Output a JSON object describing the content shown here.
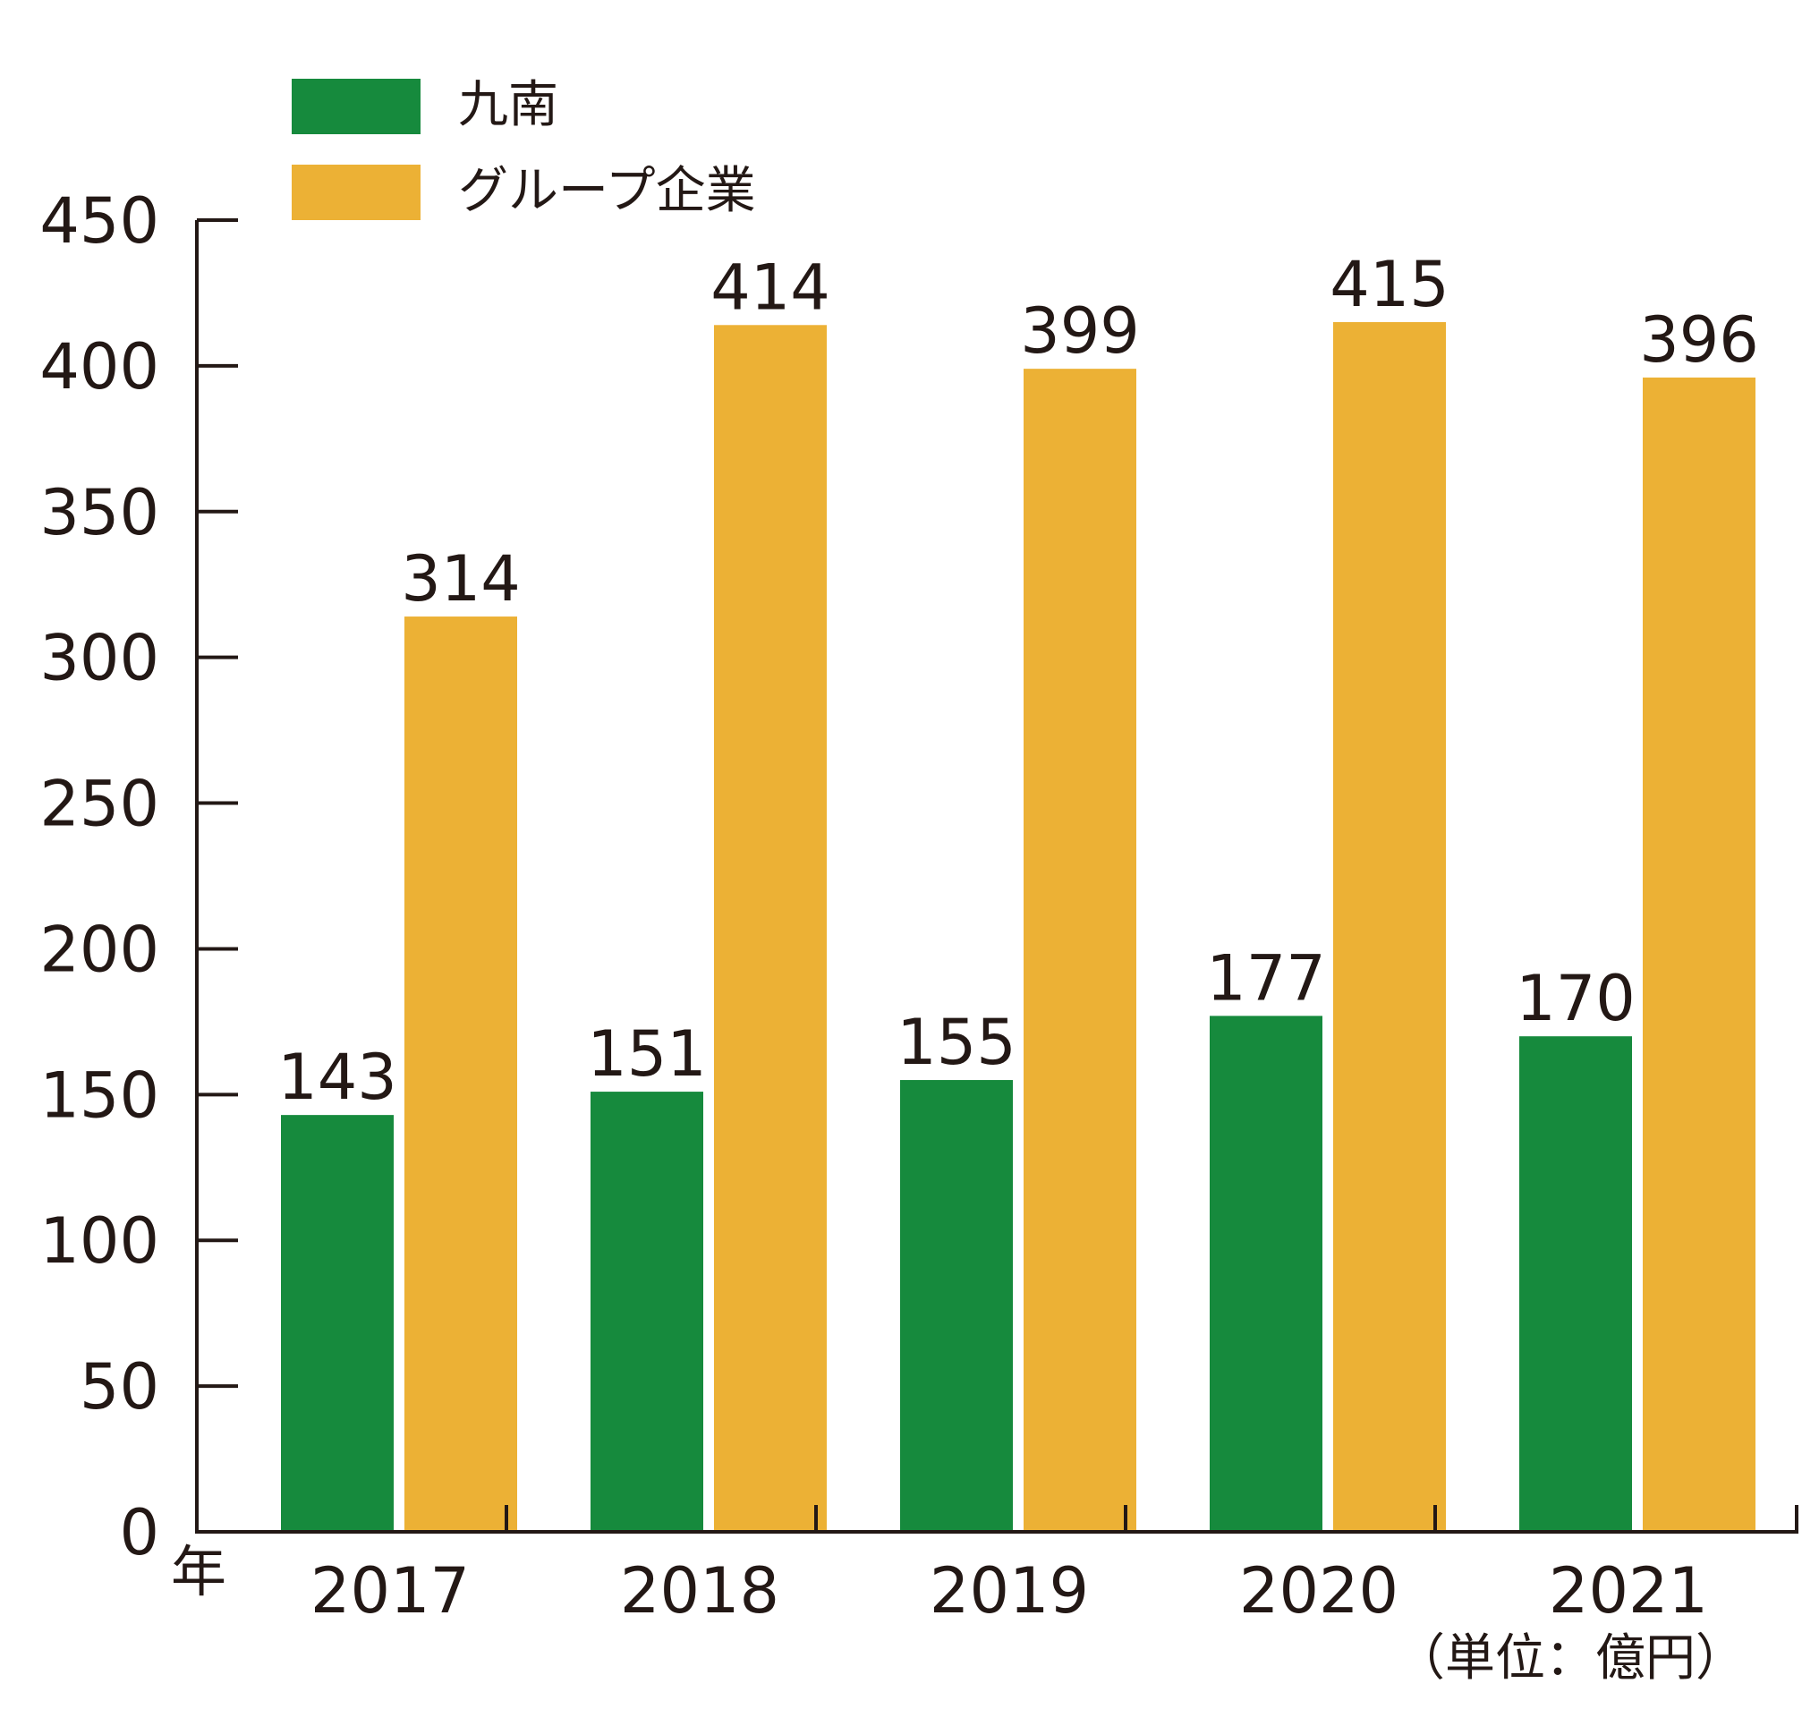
{
  "chart_data": {
    "type": "bar",
    "categories": [
      "2017",
      "2018",
      "2019",
      "2020",
      "2021"
    ],
    "series": [
      {
        "name": "九南",
        "color": "#168a3d",
        "values": [
          143,
          151,
          155,
          177,
          170
        ]
      },
      {
        "name": "グループ企業",
        "color": "#ecb135",
        "values": [
          314,
          414,
          399,
          415,
          396
        ]
      }
    ],
    "ylim": [
      0,
      450
    ],
    "yticks": [
      0,
      50,
      100,
      150,
      200,
      250,
      300,
      350,
      400,
      450
    ],
    "x_axis_label": "年",
    "unit_note": "（単位：億円）",
    "legend_position": "top-left",
    "grid": false,
    "axis_color": "#231815"
  }
}
